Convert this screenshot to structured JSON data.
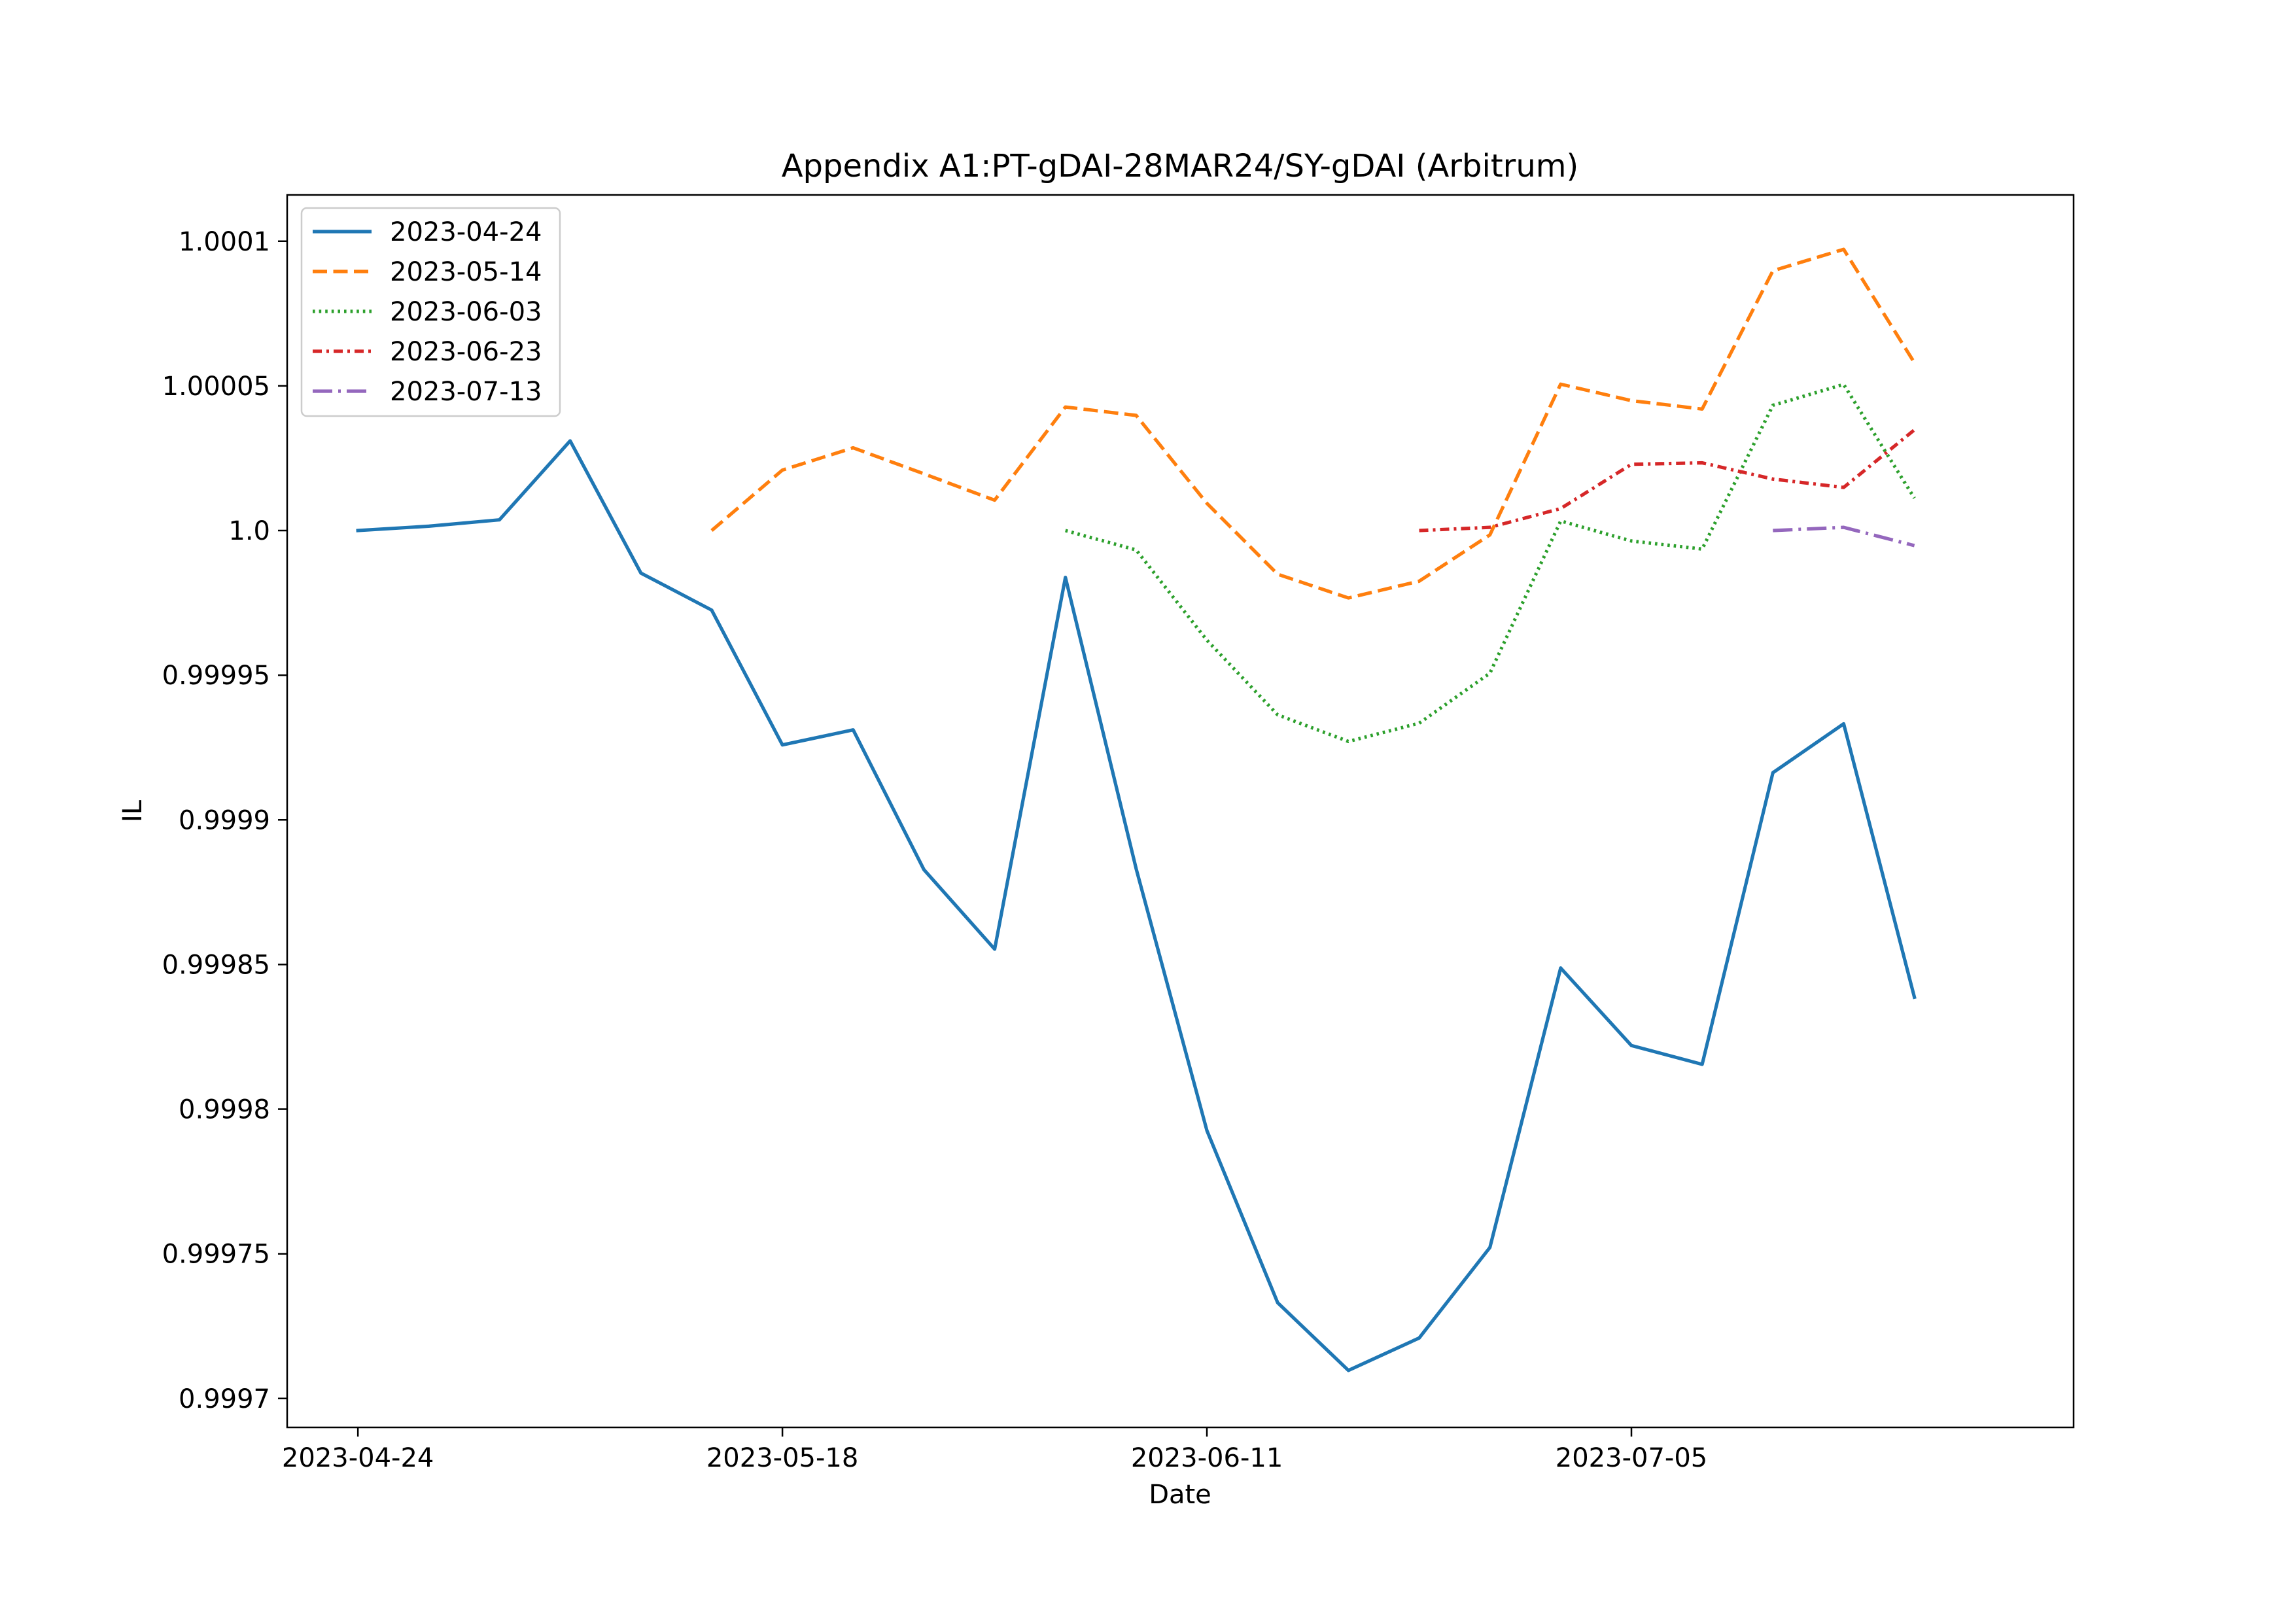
{
  "chart_data": {
    "type": "line",
    "title": "Appendix A1:PT-gDAI-28MAR24/SY-gDAI (Arbitrum)",
    "xlabel": "Date",
    "ylabel": "IL",
    "x_start": "2023-04-24",
    "x_step_days": 4,
    "xlim": [
      "2023-04-20",
      "2023-07-30"
    ],
    "ylim": [
      0.99969,
      1.000116
    ],
    "x_ticks": [
      "2023-04-24",
      "2023-05-18",
      "2023-06-11",
      "2023-07-05"
    ],
    "y_ticks": [
      {
        "value": 0.9997,
        "label": "0.9997"
      },
      {
        "value": 0.99975,
        "label": "0.99975"
      },
      {
        "value": 0.9998,
        "label": "0.9998"
      },
      {
        "value": 0.99985,
        "label": "0.99985"
      },
      {
        "value": 0.9999,
        "label": "0.9999"
      },
      {
        "value": 0.99995,
        "label": "0.99995"
      },
      {
        "value": 1.0,
        "label": "1.0"
      },
      {
        "value": 1.00005,
        "label": "1.00005"
      },
      {
        "value": 1.0001,
        "label": "1.0001"
      }
    ],
    "grid": false,
    "legend_position": "top-left",
    "series": [
      {
        "name": "2023-04-24",
        "color": "#1f77b4",
        "style": "solid",
        "x": [
          "2023-04-24",
          "2023-04-28",
          "2023-05-02",
          "2023-05-06",
          "2023-05-10",
          "2023-05-14",
          "2023-05-18",
          "2023-05-22",
          "2023-05-26",
          "2023-05-30",
          "2023-06-03",
          "2023-06-07",
          "2023-06-11",
          "2023-06-15",
          "2023-06-19",
          "2023-06-23",
          "2023-06-27",
          "2023-07-01",
          "2023-07-05",
          "2023-07-09",
          "2023-07-13",
          "2023-07-17",
          "2023-07-21"
        ],
        "values": [
          1.0,
          1.0000015,
          1.0000037,
          1.000031,
          0.9999853,
          0.9999725,
          0.9999259,
          0.9999311,
          0.9998828,
          0.9998553,
          0.9999838,
          0.9998831,
          0.9997926,
          0.9997331,
          0.9997097,
          0.9997209,
          0.9997522,
          0.9998488,
          0.999822,
          0.9998155,
          0.9999163,
          0.9999332,
          0.9998387
        ]
      },
      {
        "name": "2023-05-14",
        "color": "#ff7f0e",
        "style": "dashed",
        "x": [
          "2023-05-14",
          "2023-05-18",
          "2023-05-22",
          "2023-05-26",
          "2023-05-30",
          "2023-06-03",
          "2023-06-07",
          "2023-06-11",
          "2023-06-15",
          "2023-06-19",
          "2023-06-23",
          "2023-06-27",
          "2023-07-01",
          "2023-07-05",
          "2023-07-09",
          "2023-07-13",
          "2023-07-17",
          "2023-07-21"
        ],
        "values": [
          1.0,
          1.0000209,
          1.0000286,
          1.0000196,
          1.0000105,
          1.0000427,
          1.0000398,
          1.0000094,
          0.9999849,
          0.9999767,
          0.9999825,
          0.9999985,
          1.0000506,
          1.0000449,
          1.000042,
          1.0000898,
          1.0000972,
          1.000058
        ]
      },
      {
        "name": "2023-06-03",
        "color": "#2ca02c",
        "style": "dotted",
        "x": [
          "2023-06-03",
          "2023-06-07",
          "2023-06-11",
          "2023-06-15",
          "2023-06-19",
          "2023-06-23",
          "2023-06-27",
          "2023-07-01",
          "2023-07-05",
          "2023-07-09",
          "2023-07-13",
          "2023-07-17",
          "2023-07-21"
        ],
        "values": [
          1.0,
          0.9999933,
          0.9999621,
          0.9999363,
          0.9999271,
          0.9999334,
          0.9999507,
          1.0000033,
          0.9999964,
          0.9999936,
          1.0000433,
          1.0000505,
          1.0000112
        ]
      },
      {
        "name": "2023-06-23",
        "color": "#d62728",
        "style": "dashdot-dense",
        "x": [
          "2023-06-23",
          "2023-06-27",
          "2023-07-01",
          "2023-07-05",
          "2023-07-09",
          "2023-07-13",
          "2023-07-17",
          "2023-07-21"
        ],
        "values": [
          1.0,
          1.0000011,
          1.0000076,
          1.0000229,
          1.0000234,
          1.0000178,
          1.0000149,
          1.0000348
        ]
      },
      {
        "name": "2023-07-13",
        "color": "#9467bd",
        "style": "dashdot",
        "x": [
          "2023-07-13",
          "2023-07-17",
          "2023-07-21"
        ],
        "values": [
          1.0,
          1.0000011,
          0.9999948
        ]
      }
    ]
  }
}
